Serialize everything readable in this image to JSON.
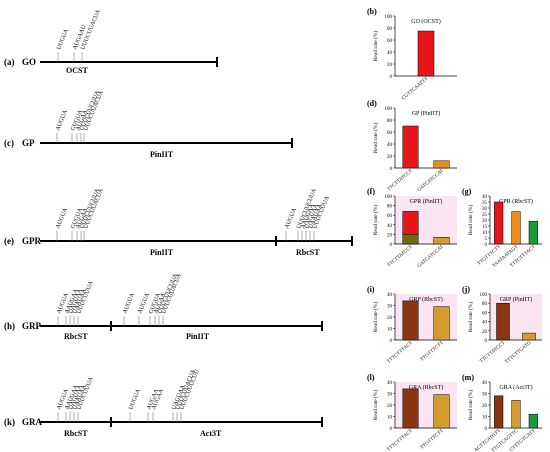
{
  "colors": {
    "red": "#e8151a",
    "brown": "#8b3513",
    "blue": "#2233cc",
    "orange": "#f08a18",
    "gold": "#d49b2e",
    "olive": "#6b6b10",
    "green": "#1a9a3a",
    "pink": "#fbdcef",
    "axis": "#000000"
  },
  "rows": {
    "a": {
      "panel": "(a)",
      "construct": "GO",
      "seqs": [
        "UUGUA",
        "AUGAAU",
        "UUUCUUACUA"
      ],
      "terminators": [
        "OCST"
      ]
    },
    "c": {
      "panel": "(c)",
      "construct": "GP",
      "seqs": [
        "AUGUA",
        "GUGUA",
        "AUGAA",
        "UUUCUUCUUA",
        "UUUCUUACUA"
      ],
      "terminators": [
        "PinIIT"
      ]
    },
    "e": {
      "panel": "(e)",
      "construct": "GPR",
      "seqs_left": [
        "AUGUA",
        "GUGUA",
        "AUGAA",
        "UUUCUUCUUA",
        "UUUCUUACUA"
      ],
      "seqs_right": [
        "AUGUA",
        "UUUCUUCUUA",
        "AAUGAA",
        "UAGUAA",
        "UAAUAA",
        "UUUCUUUA"
      ],
      "terminators": [
        "PinIIT",
        "RbcST"
      ]
    },
    "h": {
      "panel": "(h)",
      "construct": "GRP",
      "seqs_left": [
        "AUGUA",
        "AAUGAA",
        "UAGUAA",
        "UAAUAA",
        "UUUCUUUA"
      ],
      "seqs_right": [
        "AUGUA",
        "AUGUA",
        "GUGUA",
        "AUGAA",
        "UUUCUUCUUA",
        "UUUCUUACUA"
      ],
      "terminators": [
        "RbcST",
        "PinIIT"
      ]
    },
    "k": {
      "panel": "(k)",
      "construct": "GRA",
      "seqs_left": [
        "AUGUA",
        "AAUGAA",
        "UAGUAA",
        "UAAUAA",
        "UUUCUUUA"
      ],
      "seqs_right": [
        "UUGUA",
        "AUGAA",
        "AUGAA",
        "UAGUAA",
        "UUUCUUACUA",
        "UUUCUUUCUU"
      ],
      "terminators": [
        "RbcST",
        "Act3T"
      ]
    }
  },
  "y_axis_label": "Read rate (%)",
  "chart_data": [
    {
      "panel": "(b)",
      "title": "GO (OCST)",
      "type": "bar",
      "categories": [
        "CGTTCAATTT"
      ],
      "values": [
        75
      ],
      "ylim": [
        0,
        100
      ],
      "ticks": [
        0,
        20,
        40,
        60,
        80,
        100
      ],
      "colors": [
        "#e8151a"
      ]
    },
    {
      "panel": "(d)",
      "title": "GP (PinIIT)",
      "type": "bar",
      "categories": [
        "TTCTTATCCT",
        "GATCATCCAT"
      ],
      "values": [
        70,
        12
      ],
      "ylim": [
        0,
        100
      ],
      "ticks": [
        0,
        20,
        40,
        60,
        80,
        100
      ],
      "colors": [
        "#e8151a",
        "#f08a18"
      ]
    },
    {
      "panel": "(f)",
      "title": "GPR (PinIIT)",
      "type": "bar",
      "categories": [
        "TTCTTATCCT",
        "GATCATCCAT"
      ],
      "values": [
        68,
        14
      ],
      "ylim": [
        0,
        100
      ],
      "ticks": [
        0,
        20,
        40,
        60,
        80,
        100
      ],
      "colors": [
        "#e8151a",
        "#d49b2e"
      ],
      "stack_bottom": [
        20,
        0
      ]
    },
    {
      "panel": "(g)",
      "title": "GPR (RbcST)",
      "type": "bar",
      "categories": [
        "TTGTTTCTT",
        "TAATAATAGT",
        "TTTCTTTACT"
      ],
      "values": [
        35,
        27,
        19
      ],
      "ylim": [
        0,
        40
      ],
      "ticks": [
        0,
        5,
        10,
        15,
        20,
        25,
        30,
        35,
        40
      ],
      "colors": [
        "#e8151a",
        "#f08a18",
        "#1a9a3a"
      ]
    },
    {
      "panel": "(i)",
      "title": "GRP (RbcST)",
      "type": "bar",
      "categories": [
        "TTTCTTTACT",
        "TTGTTTCTT"
      ],
      "values": [
        34,
        29
      ],
      "ylim": [
        0,
        40
      ],
      "ticks": [
        0,
        10,
        20,
        30,
        40
      ],
      "colors": [
        "#8b3513",
        "#d49b2e"
      ]
    },
    {
      "panel": "(j)",
      "title": "GRP (PinIIT)",
      "type": "bar",
      "categories": [
        "TTCTTATCCT",
        "TTTCTTGATG"
      ],
      "values": [
        80,
        15
      ],
      "ylim": [
        0,
        100
      ],
      "ticks": [
        0,
        20,
        40,
        60,
        80,
        100
      ],
      "colors": [
        "#8b3513",
        "#d49b2e"
      ]
    },
    {
      "panel": "(l)",
      "title": "GRA (RbcST)",
      "type": "bar",
      "categories": [
        "TTTCTTTACT",
        "TTGTTTCTT"
      ],
      "values": [
        34,
        29
      ],
      "ylim": [
        0,
        40
      ],
      "ticks": [
        0,
        10,
        20,
        30,
        40
      ],
      "colors": [
        "#8b3513",
        "#d49b2e"
      ]
    },
    {
      "panel": "(m)",
      "title": "GRA (Act3T)",
      "type": "bar",
      "categories": [
        "AGTTCATGTT",
        "TTGTCAGTTC",
        "CTTTGTCATT"
      ],
      "values": [
        28,
        24,
        12
      ],
      "ylim": [
        0,
        40
      ],
      "ticks": [
        0,
        10,
        20,
        30,
        40
      ],
      "colors": [
        "#8b3513",
        "#d49b2e",
        "#1a9a3a"
      ]
    }
  ]
}
